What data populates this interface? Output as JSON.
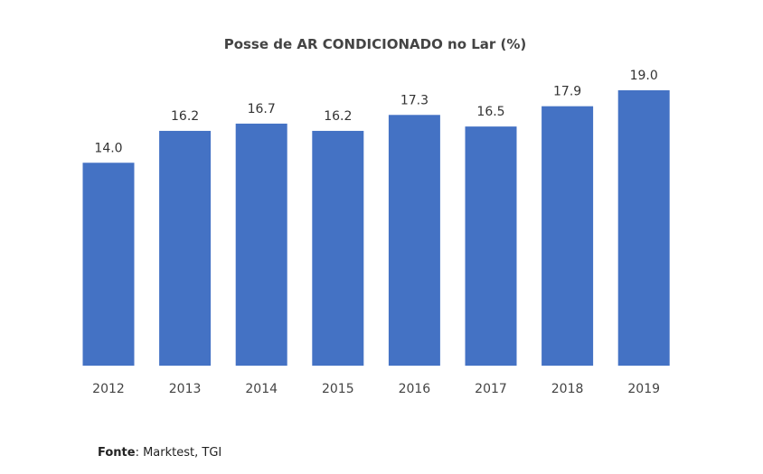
{
  "chart_data": {
    "type": "bar",
    "title": "Posse de AR CONDICIONADO no Lar (%)",
    "categories": [
      "2012",
      "2013",
      "2014",
      "2015",
      "2016",
      "2017",
      "2018",
      "2019"
    ],
    "values": [
      14.0,
      16.2,
      16.7,
      16.2,
      17.3,
      16.5,
      17.9,
      19.0
    ],
    "data_labels": [
      "14.0",
      "16.2",
      "16.7",
      "16.2",
      "17.3",
      "16.5",
      "17.9",
      "19.0"
    ],
    "xlabel": "",
    "ylabel": "",
    "ylim": [
      0,
      19
    ],
    "grid": false,
    "legend": "none",
    "bar_color": "#4472C4"
  },
  "footer": {
    "source_label": "Fonte",
    "source_value": ": Marktest, TGI"
  }
}
